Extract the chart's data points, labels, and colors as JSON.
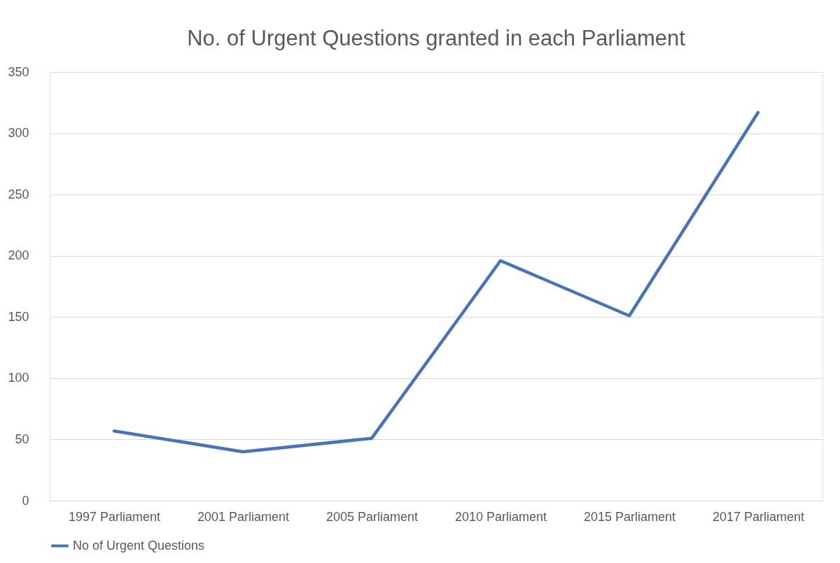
{
  "chart_data": {
    "type": "line",
    "title": "No. of Urgent Questions granted in each Parliament",
    "categories": [
      "1997 Parliament",
      "2001 Parliament",
      "2005 Parliament",
      "2010 Parliament",
      "2015 Parliament",
      "2017 Parliament"
    ],
    "series": [
      {
        "name": "No of Urgent Questions",
        "color": "#4472c4",
        "values": [
          57,
          40,
          51,
          196,
          151,
          317
        ]
      }
    ],
    "ylim": [
      0,
      350
    ],
    "yticks": [
      0,
      50,
      100,
      150,
      200,
      250,
      300,
      350
    ],
    "grid": "y",
    "legend": "bottom",
    "marker": "none",
    "line_style": "solid"
  }
}
